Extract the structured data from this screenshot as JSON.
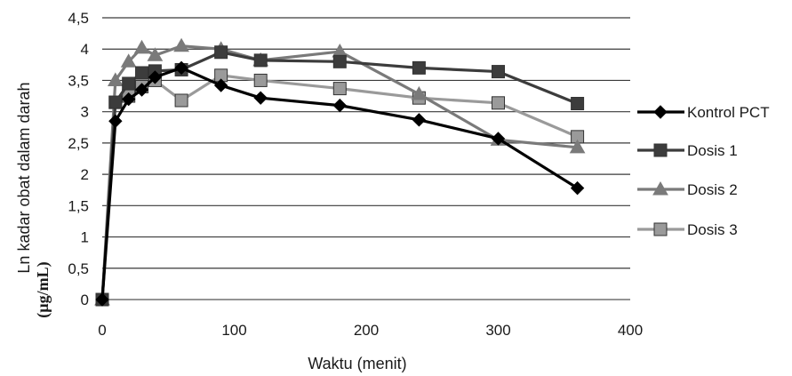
{
  "chart_data": {
    "type": "line",
    "xlabel": "Waktu (menit)",
    "ylabel": [
      "Ln kadar obat dalam darah",
      "(µg/mL)"
    ],
    "xlim": [
      0,
      400
    ],
    "ylim": [
      0,
      4.5
    ],
    "xticks": [
      0,
      100,
      200,
      300,
      400
    ],
    "xtick_labels": [
      "0",
      "100",
      "200",
      "300",
      "400"
    ],
    "yticks": [
      0,
      0.5,
      1,
      1.5,
      2,
      2.5,
      3,
      3.5,
      4,
      4.5
    ],
    "ytick_labels": [
      "0",
      "0,5",
      "1",
      "1,5",
      "2",
      "2,5",
      "3",
      "3,5",
      "4",
      "4,5"
    ],
    "grid": "horizontal",
    "legend_position": "right",
    "series": [
      {
        "name": "Kontrol PCT",
        "marker": "diamond",
        "color": "#000000",
        "x": [
          0,
          10,
          20,
          30,
          40,
          60,
          90,
          120,
          180,
          240,
          300,
          360
        ],
        "y": [
          0,
          2.85,
          3.2,
          3.35,
          3.55,
          3.7,
          3.42,
          3.22,
          3.1,
          2.87,
          2.57,
          1.78
        ]
      },
      {
        "name": "Dosis 1",
        "marker": "square",
        "color": "#3c3c3c",
        "x": [
          0,
          10,
          20,
          30,
          40,
          60,
          90,
          120,
          180,
          240,
          300,
          360
        ],
        "y": [
          0,
          3.15,
          3.45,
          3.62,
          3.65,
          3.67,
          3.95,
          3.82,
          3.8,
          3.7,
          3.64,
          3.13
        ]
      },
      {
        "name": "Dosis 2",
        "marker": "triangle",
        "color": "#7a7a7a",
        "x": [
          0,
          10,
          20,
          30,
          40,
          60,
          90,
          120,
          180,
          240,
          300,
          360
        ],
        "y": [
          0,
          3.5,
          3.8,
          4.02,
          3.9,
          4.05,
          4.0,
          3.82,
          3.96,
          3.28,
          2.55,
          2.43
        ]
      },
      {
        "name": "Dosis 3",
        "marker": "square",
        "color": "#9a9a9a",
        "x": [
          0,
          10,
          20,
          30,
          40,
          60,
          90,
          120,
          180,
          240,
          300,
          360
        ],
        "y": [
          0,
          3.15,
          3.25,
          3.4,
          3.5,
          3.18,
          3.58,
          3.5,
          3.37,
          3.22,
          3.14,
          2.6
        ]
      }
    ]
  }
}
